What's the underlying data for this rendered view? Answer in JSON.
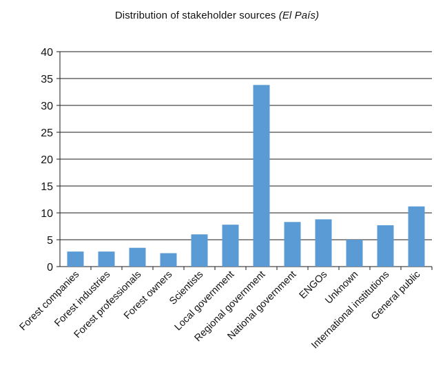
{
  "chart_data": {
    "type": "bar",
    "title": "Distribution of stakeholder sources",
    "subtitle": "(El País)",
    "xlabel": "",
    "ylabel": "",
    "ylim": [
      0,
      40
    ],
    "yticks": [
      0,
      5,
      10,
      15,
      20,
      25,
      30,
      35,
      40
    ],
    "grid": true,
    "legend": "none",
    "bar_color": "#5b9bd5",
    "categories": [
      "Forest companies",
      "Forest industries",
      "Forest professionals",
      "Forest owners",
      "Scientists",
      "Local government",
      "Regional government",
      "National government",
      "ENGOs",
      "Unknown",
      "International institutions",
      "General public"
    ],
    "values": [
      2.8,
      2.8,
      3.5,
      2.5,
      6.0,
      7.8,
      33.8,
      8.3,
      8.8,
      5.0,
      7.7,
      11.2
    ]
  }
}
